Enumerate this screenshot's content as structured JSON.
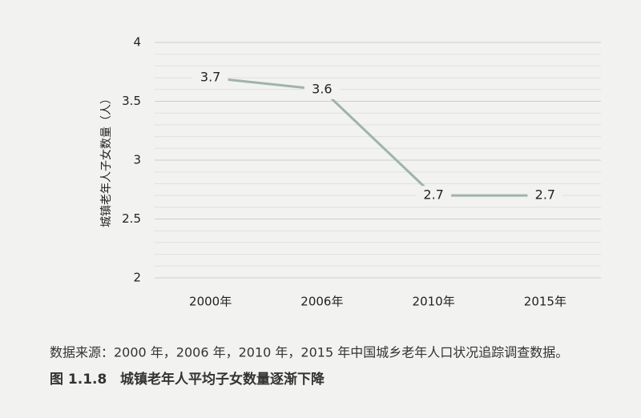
{
  "chart_data": {
    "type": "line",
    "y_label": "城镇老年人子女数量（人）",
    "categories": [
      "2000年",
      "2006年",
      "2010年",
      "2015年"
    ],
    "series": [
      {
        "name": "城镇老年人平均子女数量",
        "color": "#9fb3ad",
        "values": [
          3.7,
          3.6,
          2.7,
          2.7
        ]
      }
    ],
    "ylim": [
      2,
      4
    ],
    "yticks": [
      2,
      2.5,
      3,
      3.5,
      4
    ],
    "grid": true,
    "source": "数据来源：2000 年，2006 年，2010 年，2015 年中国城乡老年人口状况追踪调查数据。",
    "figure_label": "图 1.1.8",
    "caption": "城镇老年人平均子女数量逐渐下降"
  }
}
